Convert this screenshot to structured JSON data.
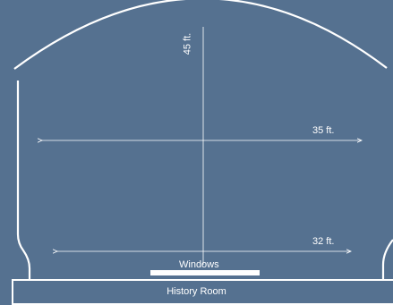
{
  "diagram": {
    "background_color": "#557190",
    "line_color": "#ffffff",
    "dimensions": {
      "height_label": "45 ft.",
      "width_upper_label": "35 ft.",
      "width_lower_label": "32 ft."
    },
    "features": {
      "windows_label": "Windows",
      "room_label": "History Room"
    }
  }
}
